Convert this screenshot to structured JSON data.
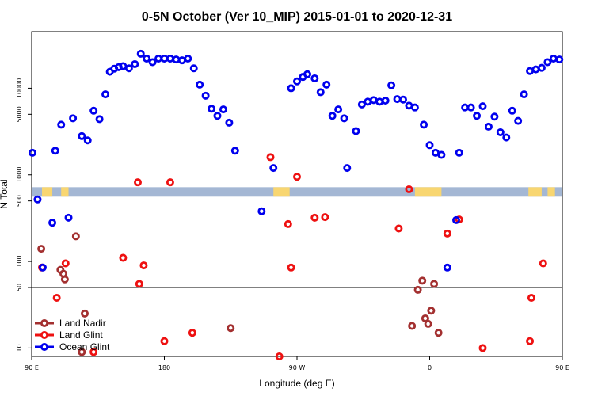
{
  "chart_data": {
    "type": "scatter",
    "title": "0-5N October (Ver 10_MIP)   2015-01-01 to 2020-12-31",
    "xlabel": "Longitude (deg E)",
    "ylabel": "N Total",
    "xlim": [
      90,
      450
    ],
    "ylim_log": [
      8,
      45000
    ],
    "x_ticks": [
      {
        "value": 90,
        "label": "90 E"
      },
      {
        "value": 180,
        "label": "180"
      },
      {
        "value": 270,
        "label": "90 W"
      },
      {
        "value": 360,
        "label": "0"
      },
      {
        "value": 450,
        "label": "90 E"
      }
    ],
    "y_ticks": [
      {
        "value": 10,
        "label": "10"
      },
      {
        "value": 50,
        "label": "50"
      },
      {
        "value": 100,
        "label": "100"
      },
      {
        "value": 500,
        "label": "500"
      },
      {
        "value": 1000,
        "label": "1000"
      },
      {
        "value": 5000,
        "label": "5000"
      },
      {
        "value": 10000,
        "label": "10000"
      }
    ],
    "reference_line_y": 50,
    "map_strip": {
      "y_low": 560,
      "y_high": 720,
      "ocean_color": "#a4b7d4",
      "land_color": "#f8d671",
      "land_segments": [
        [
          97,
          104
        ],
        [
          110,
          115
        ],
        [
          254,
          265
        ],
        [
          350,
          368
        ],
        [
          427,
          436
        ],
        [
          440,
          445
        ]
      ]
    },
    "series": [
      {
        "name": "Land Nadir",
        "color": "#a33030",
        "points": [
          [
            96.5,
            140
          ],
          [
            109.5,
            80
          ],
          [
            111.5,
            72
          ],
          [
            120,
            195
          ],
          [
            112.5,
            62
          ],
          [
            124,
            9
          ],
          [
            126,
            25
          ],
          [
            225,
            17
          ],
          [
            348,
            18
          ],
          [
            352,
            47
          ],
          [
            355,
            60
          ],
          [
            357,
            22
          ],
          [
            359,
            19
          ],
          [
            361,
            27
          ],
          [
            363,
            55
          ],
          [
            366,
            15
          ]
        ]
      },
      {
        "name": "Land Glint",
        "color": "#ee1111",
        "points": [
          [
            97,
            85
          ],
          [
            107,
            38
          ],
          [
            113,
            95
          ],
          [
            132,
            9
          ],
          [
            152,
            110
          ],
          [
            162,
            820
          ],
          [
            163,
            55
          ],
          [
            166,
            90
          ],
          [
            180,
            12
          ],
          [
            184,
            820
          ],
          [
            199,
            15
          ],
          [
            252,
            1600
          ],
          [
            258,
            8
          ],
          [
            264,
            270
          ],
          [
            266,
            85
          ],
          [
            270,
            950
          ],
          [
            282,
            320
          ],
          [
            289,
            325
          ],
          [
            339,
            240
          ],
          [
            346,
            680
          ],
          [
            372,
            210
          ],
          [
            380,
            305
          ],
          [
            396,
            10
          ],
          [
            428,
            12
          ],
          [
            429,
            38
          ],
          [
            437,
            95
          ]
        ]
      },
      {
        "name": "Ocean Glint",
        "color": "#0000ee",
        "points": [
          [
            90.5,
            1800
          ],
          [
            94,
            520
          ],
          [
            97.5,
            85
          ],
          [
            104,
            280
          ],
          [
            106,
            1900
          ],
          [
            110,
            3800
          ],
          [
            115,
            320
          ],
          [
            118,
            4500
          ],
          [
            124,
            2800
          ],
          [
            128,
            2500
          ],
          [
            132,
            5500
          ],
          [
            136,
            4400
          ],
          [
            140,
            8500
          ],
          [
            143,
            15500
          ],
          [
            146,
            16800
          ],
          [
            149,
            17500
          ],
          [
            152,
            18000
          ],
          [
            156,
            17000
          ],
          [
            160,
            19000
          ],
          [
            164,
            25000
          ],
          [
            168,
            22000
          ],
          [
            172,
            20000
          ],
          [
            176,
            22000
          ],
          [
            180,
            22000
          ],
          [
            184,
            22000
          ],
          [
            188,
            21500
          ],
          [
            192,
            21000
          ],
          [
            196,
            22000
          ],
          [
            200,
            17000
          ],
          [
            204,
            11000
          ],
          [
            208,
            8200
          ],
          [
            212,
            5800
          ],
          [
            216,
            4800
          ],
          [
            220,
            5700
          ],
          [
            224,
            4000
          ],
          [
            228,
            1900
          ],
          [
            246,
            380
          ],
          [
            254,
            1200
          ],
          [
            266,
            10000
          ],
          [
            270,
            12000
          ],
          [
            274,
            13500
          ],
          [
            277,
            14500
          ],
          [
            282,
            13000
          ],
          [
            286,
            9000
          ],
          [
            290,
            11000
          ],
          [
            294,
            4800
          ],
          [
            298,
            5700
          ],
          [
            302,
            4500
          ],
          [
            304,
            1200
          ],
          [
            310,
            3200
          ],
          [
            314,
            6500
          ],
          [
            318,
            7000
          ],
          [
            322,
            7300
          ],
          [
            326,
            7000
          ],
          [
            330,
            7200
          ],
          [
            334,
            10800
          ],
          [
            338,
            7500
          ],
          [
            342,
            7400
          ],
          [
            346,
            6300
          ],
          [
            350,
            6000
          ],
          [
            356,
            3800
          ],
          [
            360,
            2200
          ],
          [
            364,
            1800
          ],
          [
            368,
            1700
          ],
          [
            372,
            85
          ],
          [
            378,
            300
          ],
          [
            380,
            1800
          ],
          [
            384,
            6000
          ],
          [
            388,
            6000
          ],
          [
            392,
            4800
          ],
          [
            396,
            6200
          ],
          [
            400,
            3600
          ],
          [
            404,
            4700
          ],
          [
            408,
            3100
          ],
          [
            412,
            2700
          ],
          [
            416,
            5500
          ],
          [
            420,
            4200
          ],
          [
            424,
            8500
          ],
          [
            428,
            15800
          ],
          [
            432,
            16500
          ],
          [
            436,
            17200
          ],
          [
            440,
            20000
          ],
          [
            444,
            22000
          ],
          [
            448,
            21500
          ]
        ]
      }
    ],
    "legend": {
      "position": "bottom-left",
      "entries": [
        "Land Nadir",
        "Land Glint",
        "Ocean Glint"
      ]
    }
  }
}
